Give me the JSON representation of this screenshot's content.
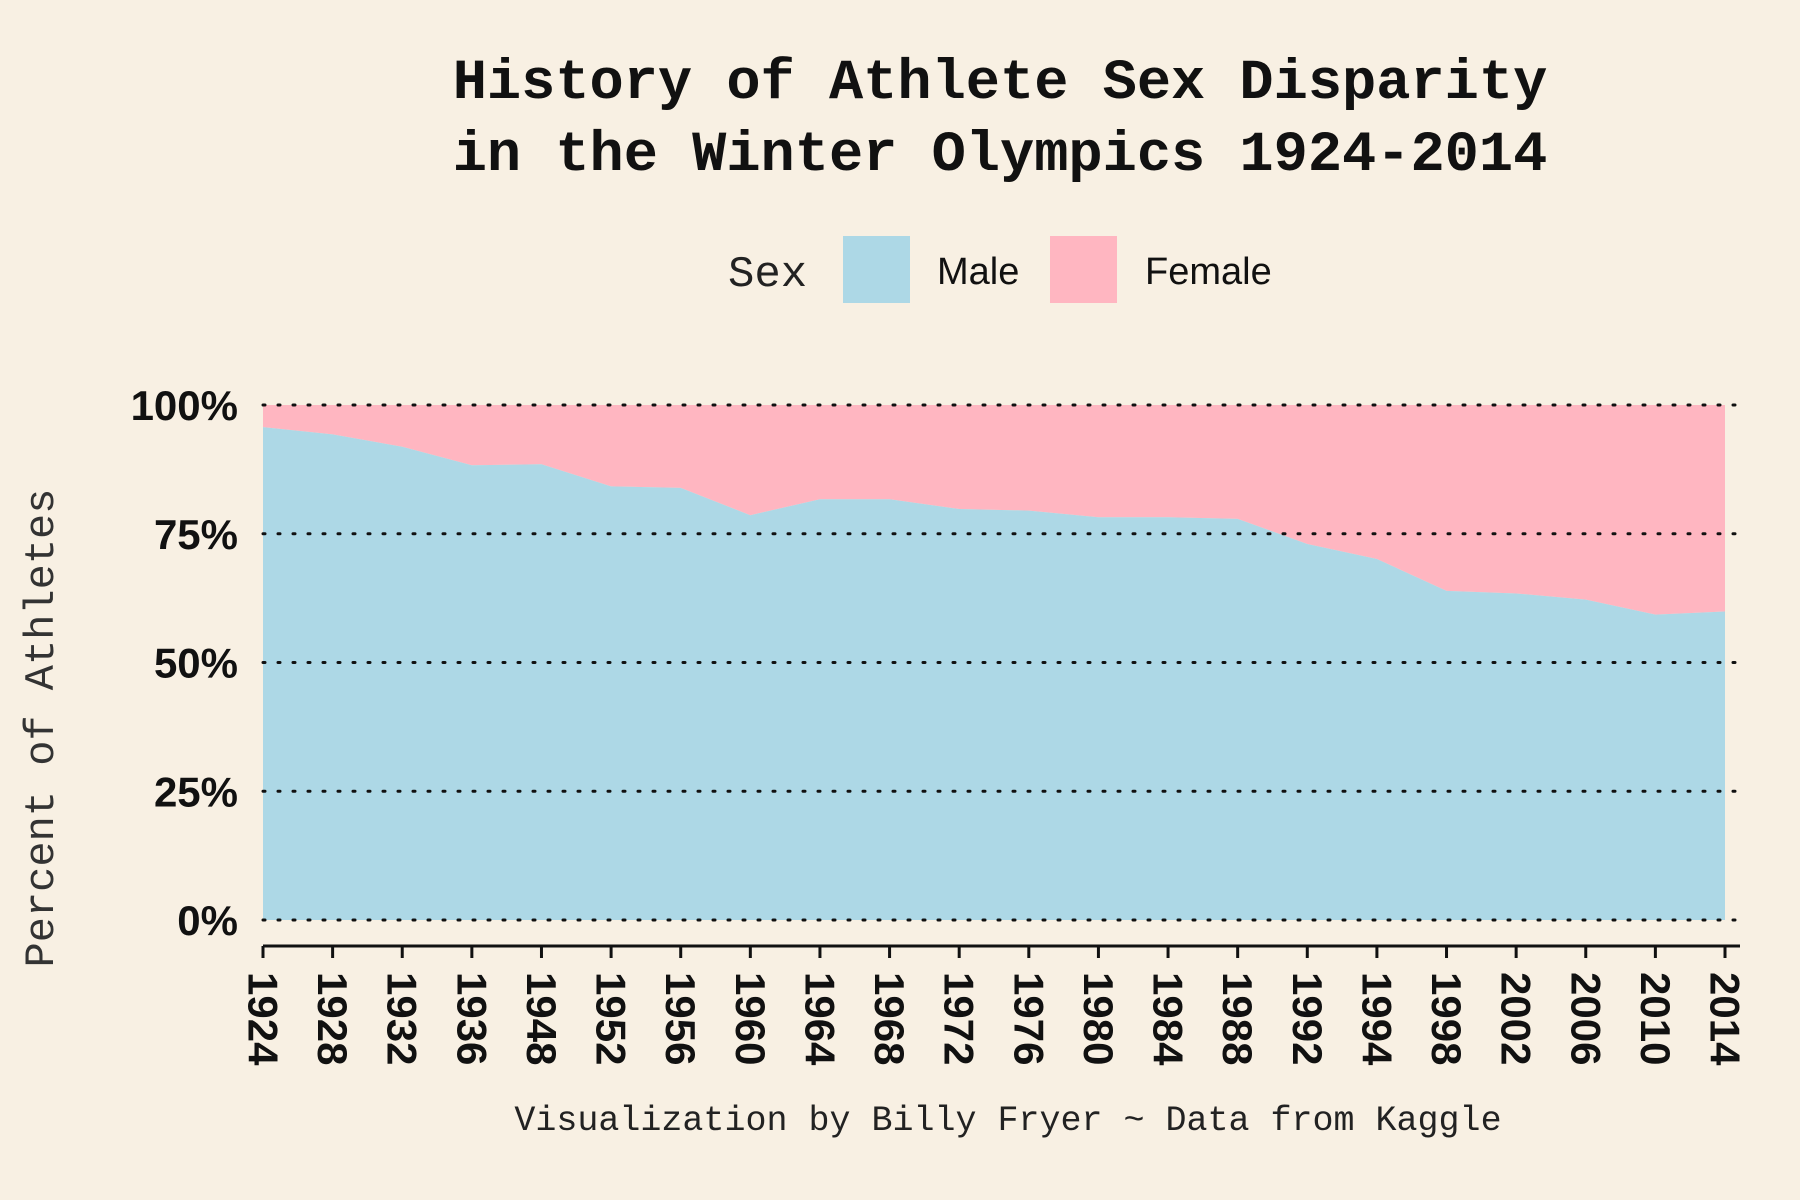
{
  "colors": {
    "background": "#f8f0e3",
    "male": "#add8e6",
    "female": "#ffb6c1",
    "text": "#111111"
  },
  "chart_data": {
    "type": "area",
    "stacked": true,
    "normalized": true,
    "title_line1": "History of Athlete Sex Disparity",
    "title_line2": "in the Winter Olympics 1924-2014",
    "ylabel": "Percent of Athletes",
    "caption": "Visualization by Billy Fryer ~ Data from Kaggle",
    "legend": {
      "title": "Sex",
      "position": "top",
      "entries": [
        {
          "label": "Male",
          "color": "#add8e6"
        },
        {
          "label": "Female",
          "color": "#ffb6c1"
        }
      ]
    },
    "ylim": [
      0,
      100
    ],
    "yticks": [
      0,
      25,
      50,
      75,
      100
    ],
    "ytick_labels": [
      "0%",
      "25%",
      "50%",
      "75%",
      "100%"
    ],
    "grid": "horizontal dotted",
    "categories": [
      "1924",
      "1928",
      "1932",
      "1936",
      "1948",
      "1952",
      "1956",
      "1960",
      "1964",
      "1968",
      "1972",
      "1976",
      "1980",
      "1984",
      "1988",
      "1992",
      "1994",
      "1998",
      "2002",
      "2006",
      "2010",
      "2014"
    ],
    "series": [
      {
        "name": "Male",
        "color": "#add8e6",
        "values": [
          95.7,
          94.3,
          91.9,
          88.3,
          88.5,
          84.2,
          83.9,
          78.6,
          81.7,
          81.7,
          79.8,
          79.5,
          78.2,
          78.2,
          77.9,
          73.0,
          70.1,
          63.9,
          63.4,
          62.2,
          59.3,
          59.9
        ]
      },
      {
        "name": "Female",
        "color": "#ffb6c1",
        "values": [
          4.3,
          5.7,
          8.1,
          11.7,
          11.5,
          15.8,
          16.1,
          21.4,
          18.3,
          18.3,
          20.2,
          20.5,
          21.8,
          21.8,
          22.1,
          27.0,
          29.9,
          36.1,
          36.6,
          37.8,
          40.7,
          40.1
        ]
      }
    ]
  }
}
